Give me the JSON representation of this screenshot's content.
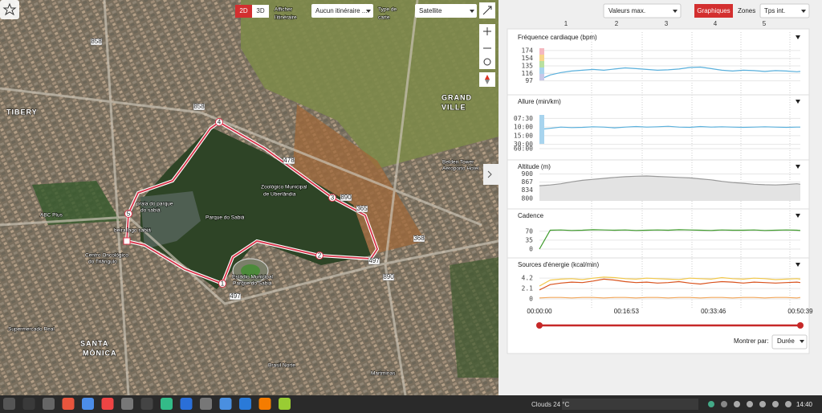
{
  "map": {
    "mode_buttons": [
      "2D",
      "3D"
    ],
    "show_route_label": [
      "Afficher",
      "l'itinéraire"
    ],
    "route_select": "Aucun itinéraire ...",
    "map_type_label": [
      "Type de",
      "carte"
    ],
    "map_type_select": "Satellite",
    "labels": [
      "TIBERY",
      "GRAND",
      "VILLE",
      "SANTA",
      "MÔNICA",
      "Zoológico Municipal",
      "de Uberlândia",
      "praia do parque",
      "do sabiá",
      "Parque do Sabiá",
      "beira lago sabiá",
      "Estádio Municipal",
      "Parque do Sabiá",
      "Centro Oncológico",
      "do Triângulo",
      "Belden Tower",
      "Aeroporto Hotel",
      "Supermercado Real",
      "Brasil Norte",
      "Martminas",
      "ABC Plus"
    ],
    "road_shields": [
      "858",
      "858",
      "478",
      "890",
      "365",
      "368",
      "497",
      "890",
      "497"
    ],
    "km_markers": [
      "1",
      "2",
      "3",
      "4",
      "5"
    ]
  },
  "toolbar": {
    "metric_select": "Valeurs max.",
    "tabs": [
      "Graphiques",
      "Zones"
    ],
    "zone_select": "Tps int.",
    "lap_markers": [
      "1",
      "2",
      "3",
      "4",
      "5"
    ]
  },
  "time_axis": {
    "xlim": [
      0,
      3039
    ],
    "x": [
      0,
      125,
      250,
      375,
      500,
      625,
      750,
      875,
      1000,
      1125,
      1250,
      1375,
      1500,
      1625,
      1750,
      1875,
      2000,
      2125,
      2250,
      2375,
      2500,
      2625,
      2750,
      2875,
      3000,
      3039
    ],
    "ticks": [
      {
        "value": 0,
        "label": "00:00:00"
      },
      {
        "value": 1013,
        "label": "00:16:53"
      },
      {
        "value": 2026,
        "label": "00:33:46"
      },
      {
        "value": 3039,
        "label": "00:50:39"
      }
    ]
  },
  "panels": [
    {
      "title": "Fréquence cardiaque (bpm)",
      "scale": "linear",
      "ylim": [
        88,
        180
      ],
      "yticks": [
        97,
        116,
        135,
        154,
        174
      ],
      "series": [
        {
          "color": "#5ab0dc",
          "values": [
            100,
            112,
            118,
            122,
            124,
            126,
            124,
            127,
            130,
            128,
            126,
            124,
            125,
            127,
            131,
            132,
            128,
            124,
            122,
            124,
            123,
            121,
            123,
            122,
            120,
            121
          ]
        }
      ]
    },
    {
      "title": "Allure (min/km)",
      "scale": "inverse",
      "ylim": [
        60,
        6.8
      ],
      "yticks": [
        {
          "value": 7.5,
          "label": "07:30"
        },
        {
          "value": 10,
          "label": "10:00"
        },
        {
          "value": 15,
          "label": "15:00"
        },
        {
          "value": 30,
          "label": "30:00"
        },
        {
          "value": 60,
          "label": "60:00"
        }
      ],
      "series": [
        {
          "color": "#5ab0dc",
          "values": [
            11,
            10.5,
            10,
            10.2,
            10.1,
            9.9,
            10,
            10.3,
            10,
            9.8,
            10,
            9.9,
            9.7,
            10,
            10.1,
            9.8,
            10,
            9.9,
            10,
            10.1,
            10,
            9.9,
            10,
            10.1,
            10,
            10
          ]
        }
      ]
    },
    {
      "title": "Altitude (m)",
      "scale": "linear",
      "ylim": [
        790,
        905
      ],
      "yticks": [
        800,
        834,
        867,
        900
      ],
      "area": true,
      "series": [
        {
          "color": "#9a9a9a",
          "values": [
            852,
            855,
            860,
            868,
            874,
            878,
            882,
            886,
            889,
            891,
            892,
            890,
            888,
            886,
            884,
            880,
            876,
            870,
            865,
            862,
            858,
            856,
            855,
            857,
            860,
            858
          ]
        }
      ]
    },
    {
      "title": "Cadence",
      "scale": "linear",
      "ylim": [
        0,
        85
      ],
      "yticks": [
        0,
        35,
        70
      ],
      "series": [
        {
          "color": "#3d9a2a",
          "values": [
            0,
            74,
            75,
            73,
            74,
            76,
            75,
            74,
            75,
            73,
            74,
            75,
            74,
            76,
            75,
            74,
            73,
            75,
            74,
            74,
            75,
            73,
            74,
            75,
            74,
            73
          ]
        }
      ]
    },
    {
      "title": "Sources d'énergie (kcal/min)",
      "scale": "linear",
      "ylim": [
        0,
        5.2
      ],
      "yticks": [
        0,
        2.1,
        4.2
      ],
      "series": [
        {
          "color": "#f2c84b",
          "values": [
            2.6,
            3.8,
            4.0,
            4.1,
            3.9,
            4.2,
            4.4,
            4.3,
            4.1,
            4.0,
            4.2,
            4.1,
            4.0,
            3.9,
            4.2,
            4.1,
            4.0,
            4.3,
            4.1,
            4.0,
            4.2,
            4.1,
            3.9,
            4.0,
            4.1,
            4.0
          ]
        },
        {
          "color": "#d9531e",
          "values": [
            1.8,
            2.9,
            3.2,
            3.4,
            3.3,
            3.6,
            4.0,
            3.8,
            3.5,
            3.3,
            3.4,
            3.2,
            3.3,
            3.5,
            3.2,
            3.0,
            3.3,
            3.5,
            3.4,
            3.2,
            3.4,
            3.3,
            3.2,
            3.3,
            3.4,
            3.3
          ]
        },
        {
          "color": "#f2a65a",
          "values": [
            0.2,
            0.3,
            0.3,
            0.2,
            0.3,
            0.3,
            0.2,
            0.3,
            0.3,
            0.2,
            0.3,
            0.3,
            0.2,
            0.3,
            0.3,
            0.2,
            0.3,
            0.3,
            0.2,
            0.3,
            0.3,
            0.2,
            0.3,
            0.3,
            0.2,
            0.3
          ]
        }
      ]
    }
  ],
  "footer": {
    "show_by_label": "Montrer par:",
    "show_by_select": "Durée"
  },
  "taskbar": {
    "weather": "Clouds 24 °C",
    "clock": "14:40"
  }
}
